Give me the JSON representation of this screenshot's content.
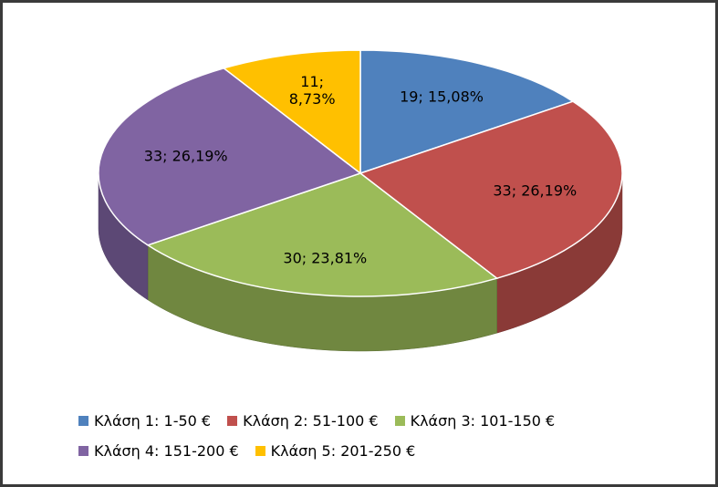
{
  "chart_data": {
    "type": "pie",
    "categories": [
      "Κλάση 1: 1-50 €",
      "Κλάση 2: 51-100 €",
      "Κλάση 3: 101-150 €",
      "Κλάση 4: 151-200 €",
      "Κλάση 5: 201-250 €"
    ],
    "values": [
      19,
      33,
      30,
      33,
      11
    ],
    "value_labels": [
      "19; 15,08%",
      "33; 26,19%",
      "30; 23,81%",
      "33; 26,19%",
      "11; 8,73%"
    ],
    "colors": [
      "#4f81bd",
      "#c0504d",
      "#9bbb59",
      "#8064a2",
      "#ffc000"
    ],
    "legend": "bottom"
  }
}
